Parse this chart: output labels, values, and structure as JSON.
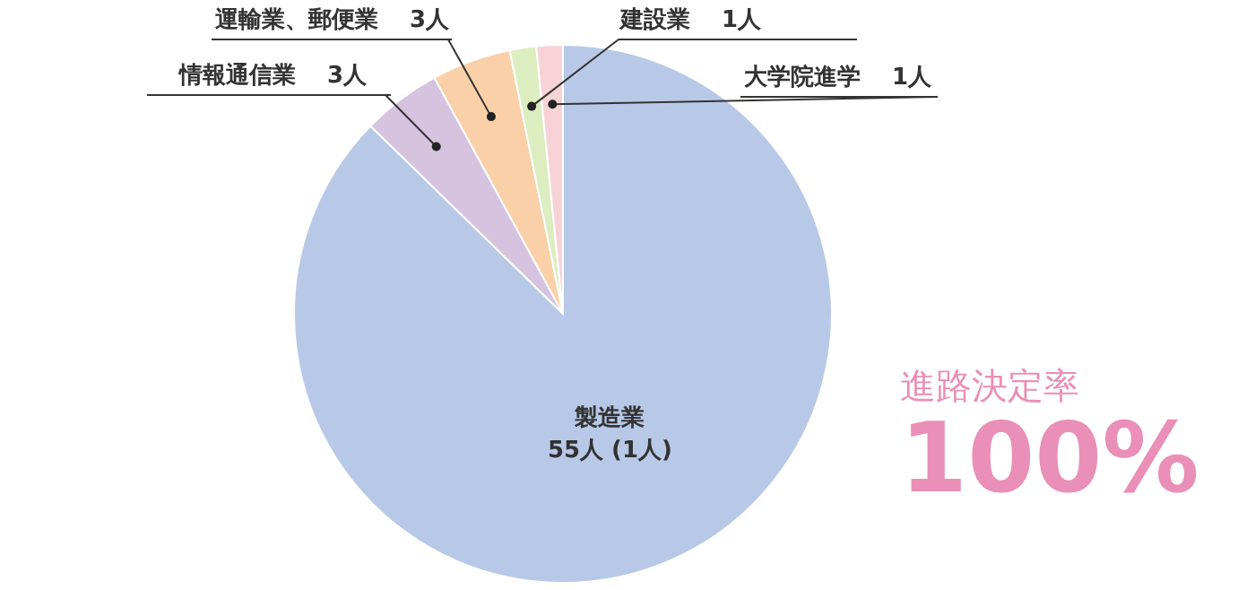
{
  "chart_data": {
    "type": "pie",
    "categories": [
      "製造業",
      "情報通信業",
      "運輸業、郵便業",
      "建設業",
      "大学院進学"
    ],
    "values": [
      55,
      3,
      3,
      1,
      1
    ],
    "value_labels": [
      "55人 (1人)",
      "3人",
      "3人",
      "1人",
      "1人"
    ],
    "colors": [
      "#b8c9e8",
      "#d5c3e0",
      "#f9d0a8",
      "#dcedc0",
      "#f7d3d8"
    ],
    "annotations": [
      "進路決定率",
      "100%"
    ]
  }
}
